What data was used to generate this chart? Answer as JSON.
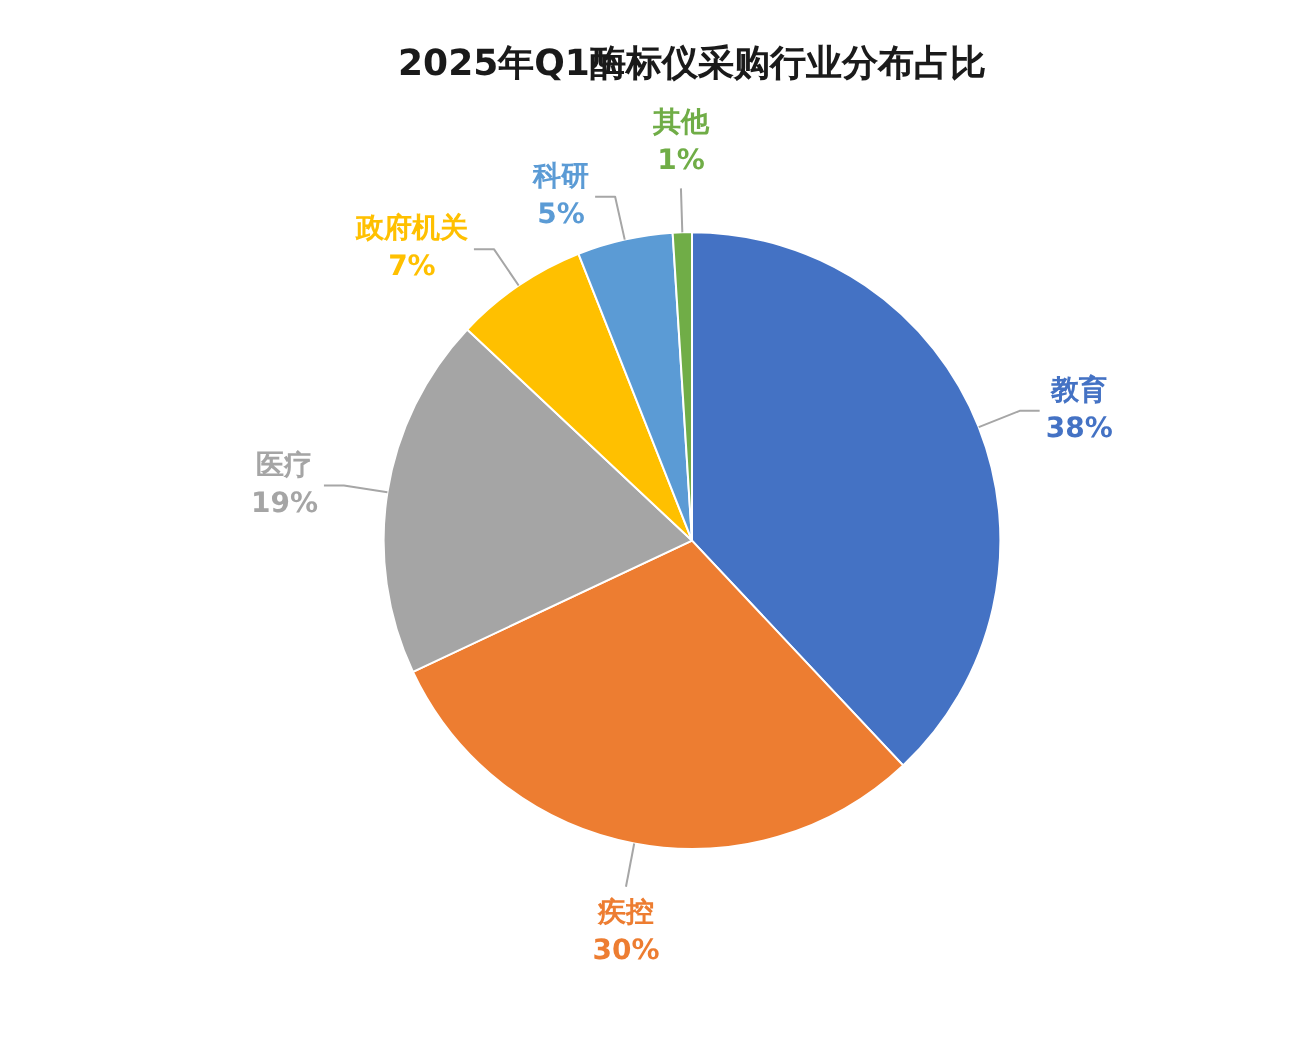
{
  "chart_data": {
    "type": "pie",
    "title": "2025年Q1酶标仪采购行业分布占比",
    "categories": [
      "教育",
      "疾控",
      "医疗",
      "政府机关",
      "科研",
      "其他"
    ],
    "values": [
      38,
      30,
      19,
      7,
      5,
      1
    ],
    "colors": [
      "#4472c4",
      "#ed7d31",
      "#a5a5a5",
      "#ffc000",
      "#5b9bd5",
      "#70ad47"
    ],
    "value_labels": [
      "38%",
      "30%",
      "19%",
      "7%",
      "5%",
      "1%"
    ]
  }
}
